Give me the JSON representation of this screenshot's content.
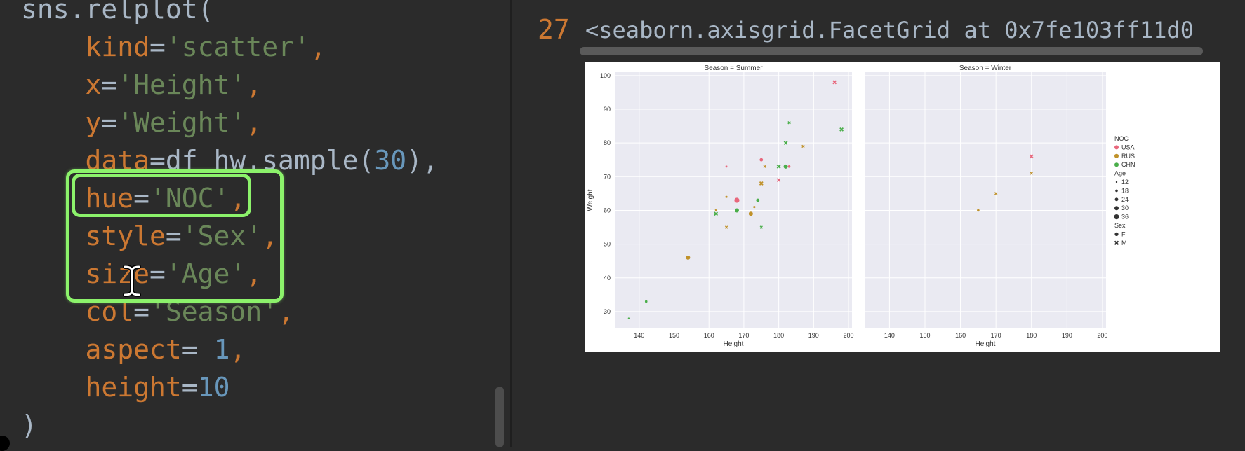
{
  "editor": {
    "lines": [
      [
        {
          "t": "sns.relplot(",
          "c": "def"
        }
      ],
      [
        {
          "t": "    ",
          "c": "def"
        },
        {
          "t": "kind",
          "c": "kw"
        },
        {
          "t": "=",
          "c": "def"
        },
        {
          "t": "'scatter'",
          "c": "str"
        },
        {
          "t": ",",
          "c": "kw"
        }
      ],
      [
        {
          "t": "    ",
          "c": "def"
        },
        {
          "t": "x",
          "c": "kw"
        },
        {
          "t": "=",
          "c": "def"
        },
        {
          "t": "'Height'",
          "c": "str"
        },
        {
          "t": ",",
          "c": "kw"
        }
      ],
      [
        {
          "t": "    ",
          "c": "def"
        },
        {
          "t": "y",
          "c": "kw"
        },
        {
          "t": "=",
          "c": "def"
        },
        {
          "t": "'Weight'",
          "c": "str"
        },
        {
          "t": ",",
          "c": "kw"
        }
      ],
      [
        {
          "t": "    ",
          "c": "def"
        },
        {
          "t": "data",
          "c": "kw"
        },
        {
          "t": "=df_hw.sample(",
          "c": "def"
        },
        {
          "t": "30",
          "c": "num"
        },
        {
          "t": "),",
          "c": "def"
        }
      ],
      [
        {
          "t": "    ",
          "c": "def"
        },
        {
          "t": "hue",
          "c": "kw"
        },
        {
          "t": "=",
          "c": "def"
        },
        {
          "t": "'NOC'",
          "c": "str"
        },
        {
          "t": ",",
          "c": "kw"
        }
      ],
      [
        {
          "t": "    ",
          "c": "def"
        },
        {
          "t": "style",
          "c": "kw"
        },
        {
          "t": "=",
          "c": "def"
        },
        {
          "t": "'Sex'",
          "c": "str"
        },
        {
          "t": ",",
          "c": "kw"
        }
      ],
      [
        {
          "t": "    ",
          "c": "def"
        },
        {
          "t": "size",
          "c": "kw"
        },
        {
          "t": "=",
          "c": "def"
        },
        {
          "t": "'Age'",
          "c": "str"
        },
        {
          "t": ",",
          "c": "kw"
        }
      ],
      [
        {
          "t": "    ",
          "c": "def"
        },
        {
          "t": "col",
          "c": "kw"
        },
        {
          "t": "=",
          "c": "def"
        },
        {
          "t": "'Season'",
          "c": "str"
        },
        {
          "t": ",",
          "c": "kw"
        }
      ],
      [
        {
          "t": "    ",
          "c": "def"
        },
        {
          "t": "aspect",
          "c": "kw"
        },
        {
          "t": "= ",
          "c": "def"
        },
        {
          "t": "1",
          "c": "num"
        },
        {
          "t": ",",
          "c": "kw"
        }
      ],
      [
        {
          "t": "    ",
          "c": "def"
        },
        {
          "t": "height",
          "c": "kw"
        },
        {
          "t": "=",
          "c": "def"
        },
        {
          "t": "10",
          "c": "num"
        }
      ],
      [
        {
          "t": ")",
          "c": "def"
        }
      ]
    ]
  },
  "output": {
    "cell_number": "27",
    "text": "<seaborn.axisgrid.FacetGrid at 0x7fe103ff11d0"
  },
  "colors": {
    "USA": "#e8677c",
    "RUS": "#c0922a",
    "CHN": "#4aae4a",
    "highlight": "#8cf26b"
  },
  "chart_data": {
    "type": "scatter",
    "facets": [
      {
        "title": "Season = Summer",
        "points": [
          {
            "x": 196,
            "y": 98,
            "NOC": "USA",
            "Sex": "M",
            "Age": 24
          },
          {
            "x": 183,
            "y": 86,
            "NOC": "CHN",
            "Sex": "M",
            "Age": 18
          },
          {
            "x": 198,
            "y": 84,
            "NOC": "CHN",
            "Sex": "M",
            "Age": 24
          },
          {
            "x": 182,
            "y": 80,
            "NOC": "CHN",
            "Sex": "M",
            "Age": 24
          },
          {
            "x": 187,
            "y": 79,
            "NOC": "RUS",
            "Sex": "M",
            "Age": 18
          },
          {
            "x": 175,
            "y": 75,
            "NOC": "USA",
            "Sex": "F",
            "Age": 24
          },
          {
            "x": 165,
            "y": 73,
            "NOC": "USA",
            "Sex": "M",
            "Age": 12
          },
          {
            "x": 176,
            "y": 73,
            "NOC": "RUS",
            "Sex": "M",
            "Age": 18
          },
          {
            "x": 180,
            "y": 73,
            "NOC": "CHN",
            "Sex": "M",
            "Age": 24
          },
          {
            "x": 182,
            "y": 73,
            "NOC": "CHN",
            "Sex": "F",
            "Age": 30
          },
          {
            "x": 183,
            "y": 73,
            "NOC": "USA",
            "Sex": "F",
            "Age": 18
          },
          {
            "x": 180,
            "y": 69,
            "NOC": "USA",
            "Sex": "M",
            "Age": 24
          },
          {
            "x": 175,
            "y": 68,
            "NOC": "RUS",
            "Sex": "M",
            "Age": 24
          },
          {
            "x": 165,
            "y": 64,
            "NOC": "RUS",
            "Sex": "M",
            "Age": 12
          },
          {
            "x": 168,
            "y": 63,
            "NOC": "USA",
            "Sex": "F",
            "Age": 36
          },
          {
            "x": 174,
            "y": 63,
            "NOC": "CHN",
            "Sex": "F",
            "Age": 24
          },
          {
            "x": 173,
            "y": 61,
            "NOC": "RUS",
            "Sex": "M",
            "Age": 12
          },
          {
            "x": 162,
            "y": 60,
            "NOC": "RUS",
            "Sex": "M",
            "Age": 12
          },
          {
            "x": 168,
            "y": 60,
            "NOC": "CHN",
            "Sex": "F",
            "Age": 30
          },
          {
            "x": 162,
            "y": 59,
            "NOC": "CHN",
            "Sex": "M",
            "Age": 24
          },
          {
            "x": 172,
            "y": 59,
            "NOC": "RUS",
            "Sex": "F",
            "Age": 30
          },
          {
            "x": 165,
            "y": 55,
            "NOC": "RUS",
            "Sex": "M",
            "Age": 18
          },
          {
            "x": 175,
            "y": 55,
            "NOC": "CHN",
            "Sex": "M",
            "Age": 18
          },
          {
            "x": 154,
            "y": 46,
            "NOC": "RUS",
            "Sex": "F",
            "Age": 30
          },
          {
            "x": 142,
            "y": 33,
            "NOC": "CHN",
            "Sex": "F",
            "Age": 18
          },
          {
            "x": 137,
            "y": 28,
            "NOC": "CHN",
            "Sex": "F",
            "Age": 12
          }
        ]
      },
      {
        "title": "Season = Winter",
        "points": [
          {
            "x": 180,
            "y": 76,
            "NOC": "USA",
            "Sex": "M",
            "Age": 24
          },
          {
            "x": 180,
            "y": 71,
            "NOC": "RUS",
            "Sex": "M",
            "Age": 18
          },
          {
            "x": 170,
            "y": 65,
            "NOC": "RUS",
            "Sex": "M",
            "Age": 18
          },
          {
            "x": 165,
            "y": 60,
            "NOC": "RUS",
            "Sex": "F",
            "Age": 18
          }
        ]
      }
    ],
    "xlabel": "Height",
    "ylabel": "Weight",
    "xlim": [
      133,
      201
    ],
    "ylim": [
      25,
      101
    ],
    "xticks": [
      140,
      150,
      160,
      170,
      180,
      190,
      200
    ],
    "yticks": [
      30,
      40,
      50,
      60,
      70,
      80,
      90,
      100
    ],
    "grid": true,
    "legend": {
      "placement": "right",
      "hue_title": "NOC",
      "hue_entries": [
        "USA",
        "RUS",
        "CHN"
      ],
      "size_title": "Age",
      "size_entries": [
        12,
        18,
        24,
        30,
        36
      ],
      "style_title": "Sex",
      "style_entries": [
        "F",
        "M"
      ]
    }
  }
}
